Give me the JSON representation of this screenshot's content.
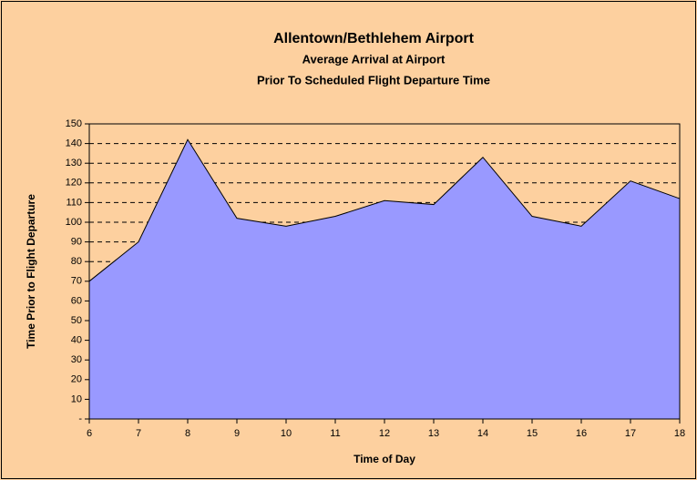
{
  "chart_data": {
    "type": "area",
    "title": "Allentown/Bethlehem Airport",
    "subtitle": [
      "Average Arrival at Airport",
      "Prior To Scheduled Flight Departure Time"
    ],
    "x_label": "Time of Day",
    "y_label": "Time Prior to Flight Departure",
    "x": [
      6,
      7,
      8,
      9,
      10,
      11,
      12,
      13,
      14,
      15,
      16,
      17,
      18
    ],
    "series": [
      {
        "name": "Average arrival",
        "color": "#9999ff",
        "values": [
          70,
          90,
          142,
          102,
          98,
          103,
          111,
          109,
          133,
          103,
          98,
          121,
          112
        ]
      }
    ],
    "xlim": [
      6,
      18
    ],
    "xticks": [
      6,
      7,
      8,
      9,
      10,
      11,
      12,
      13,
      14,
      15,
      16,
      17,
      18
    ],
    "ylim": [
      0,
      150
    ],
    "yticks": [
      {
        "value": 0,
        "label": "-"
      },
      10,
      20,
      30,
      40,
      50,
      60,
      70,
      80,
      90,
      100,
      110,
      120,
      130,
      140,
      150
    ],
    "grid": true
  }
}
